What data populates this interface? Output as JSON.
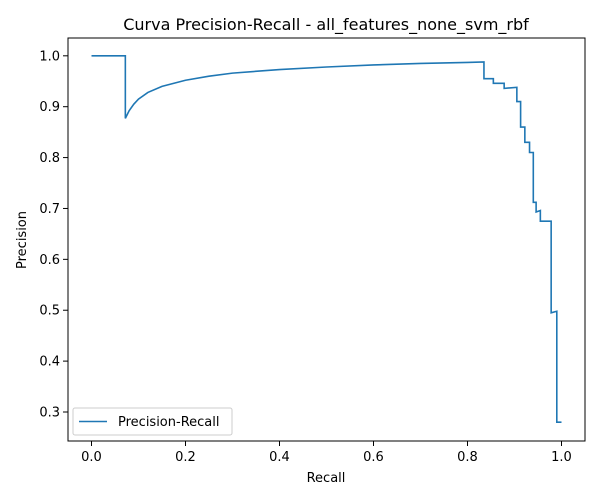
{
  "chart_data": {
    "type": "line",
    "title": "Curva Precision-Recall - all_features_none_svm_rbf",
    "xlabel": "Recall",
    "ylabel": "Precision",
    "xlim": [
      -0.05,
      1.05
    ],
    "ylim": [
      0.243,
      1.035
    ],
    "xticks": [
      0.0,
      0.2,
      0.4,
      0.6,
      0.8,
      1.0
    ],
    "xtick_labels": [
      "0.0",
      "0.2",
      "0.4",
      "0.6",
      "0.8",
      "1.0"
    ],
    "yticks": [
      0.3,
      0.4,
      0.5,
      0.6,
      0.7,
      0.8,
      0.9,
      1.0
    ],
    "ytick_labels": [
      "0.3",
      "0.4",
      "0.5",
      "0.6",
      "0.7",
      "0.8",
      "0.9",
      "1.0"
    ],
    "grid": false,
    "legend_position": "lower-left",
    "series": [
      {
        "name": "Precision-Recall",
        "color": "#1f77b4",
        "x": [
          0.0,
          0.072,
          0.072,
          0.08,
          0.09,
          0.1,
          0.12,
          0.15,
          0.2,
          0.25,
          0.3,
          0.4,
          0.5,
          0.6,
          0.7,
          0.8,
          0.835,
          0.835,
          0.855,
          0.855,
          0.878,
          0.878,
          0.905,
          0.905,
          0.913,
          0.913,
          0.922,
          0.922,
          0.932,
          0.932,
          0.94,
          0.94,
          0.946,
          0.946,
          0.955,
          0.955,
          0.978,
          0.978,
          0.99,
          0.99,
          1.0,
          1.0
        ],
        "y": [
          1.0,
          1.0,
          0.877,
          0.892,
          0.905,
          0.915,
          0.928,
          0.94,
          0.952,
          0.96,
          0.966,
          0.973,
          0.978,
          0.982,
          0.985,
          0.987,
          0.988,
          0.955,
          0.955,
          0.946,
          0.946,
          0.936,
          0.938,
          0.91,
          0.91,
          0.86,
          0.86,
          0.83,
          0.83,
          0.81,
          0.81,
          0.712,
          0.712,
          0.693,
          0.696,
          0.675,
          0.675,
          0.495,
          0.498,
          0.28,
          0.28,
          0.28
        ]
      }
    ]
  }
}
